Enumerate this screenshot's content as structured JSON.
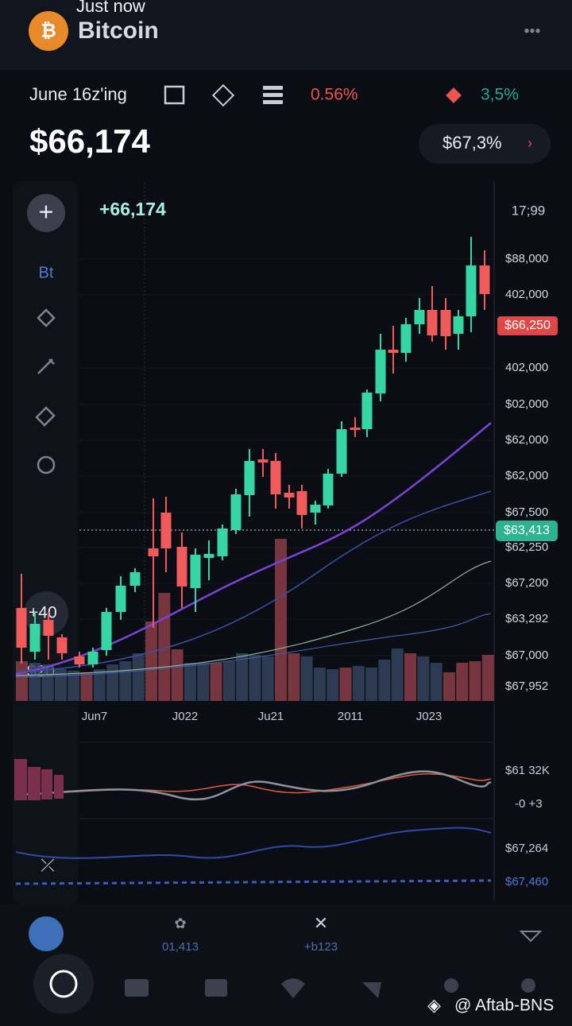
{
  "status": {
    "time": "Just now"
  },
  "header": {
    "title": "Bitcoin",
    "menu": "•••"
  },
  "toolbar": {
    "date": "June 16z'ing",
    "change_down": "0.56%",
    "change_up": "3,5%"
  },
  "price": {
    "value": "$66,174",
    "badge": "$67,3%"
  },
  "chart": {
    "top_label": "+66,174",
    "corner_label": "17;99",
    "side_label": "Bt",
    "left_labels": [
      "+40",
      "$20"
    ],
    "price_labels": [
      "$88,000",
      "402,000",
      "402,000",
      "$02,000",
      "$62,000",
      "$62,000",
      "$67,500",
      "$62,250",
      "$67,200",
      "$63,292",
      "$67,000",
      "$67,952"
    ],
    "current_tag": "$66,250",
    "line_tag": "$63,413",
    "x_labels": [
      "Jun7",
      "J022",
      "Ju21",
      "2011",
      "J023"
    ]
  },
  "indicators": {
    "labels": [
      "$61 32K",
      "-0 +3",
      "$67,264",
      "$67,460"
    ]
  },
  "bottom": {
    "stats": [
      "01,413",
      "+b123"
    ],
    "watermark": "@ Aftab-BNS"
  }
}
